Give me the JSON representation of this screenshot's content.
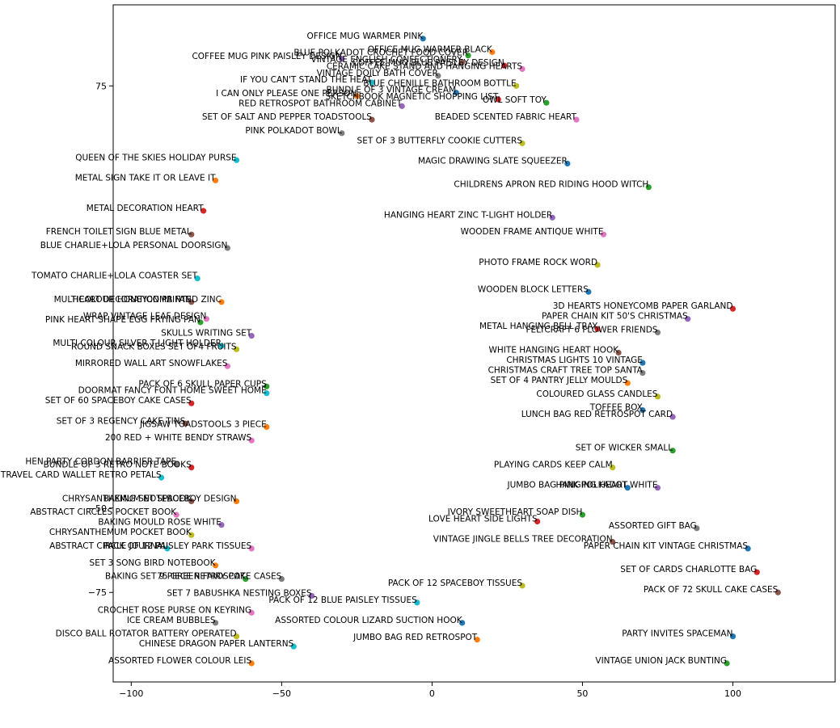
{
  "chart_data": {
    "type": "scatter",
    "title": "",
    "xlabel": "",
    "ylabel": "",
    "xlim": [
      -106,
      134
    ],
    "ylim": [
      -101.5,
      99
    ],
    "grid": false,
    "legend": "none",
    "x_ticks": [
      {
        "value": -100,
        "label": "−100"
      },
      {
        "value": -50,
        "label": "−50"
      },
      {
        "value": 0,
        "label": "0"
      },
      {
        "value": 50,
        "label": "50"
      },
      {
        "value": 100,
        "label": "100"
      }
    ],
    "y_ticks": [
      {
        "value": 75,
        "label": "75"
      },
      {
        "value": -50,
        "label": "−50"
      },
      {
        "value": -75,
        "label": "−75"
      }
    ],
    "palette": [
      "#1f77b4",
      "#ff7f0e",
      "#2ca02c",
      "#d62728",
      "#9467bd",
      "#8c564b",
      "#e377c2",
      "#7f7f7f",
      "#bcbd22",
      "#17becf"
    ],
    "points": [
      {
        "x": -3,
        "y": 89,
        "label": "OFFICE MUG WARMER PINK"
      },
      {
        "x": 20,
        "y": 85,
        "label": "OFFICE MUG WARMER BLACK"
      },
      {
        "x": 12,
        "y": 84,
        "label": "BLUE POLKADOT CROCHET FOOD COVER"
      },
      {
        "x": 24,
        "y": 81,
        "label": "COFFEE MUG BLUE PAISLEY DESIGN"
      },
      {
        "x": -30,
        "y": 83,
        "label": "COFFEE MUG PINK PAISLEY DESIGN"
      },
      {
        "x": 10,
        "y": 82,
        "label": "VINTAGE ENGLISH CONFECTIONERY"
      },
      {
        "x": 30,
        "y": 80,
        "label": "CERAMIC CAKE STAND AND HANGING HEARTS"
      },
      {
        "x": 2,
        "y": 78,
        "label": "VINTAGE DOILY BATH COVER"
      },
      {
        "x": 28,
        "y": 75,
        "label": "BLUE CHENILLE BATHROOM BOTTLE"
      },
      {
        "x": -20,
        "y": 76,
        "label": "IF YOU CAN'T STAND THE HEAT"
      },
      {
        "x": 8,
        "y": 73,
        "label": "BUNDLE OF 3 VINTAGE CREAM"
      },
      {
        "x": -25,
        "y": 72,
        "label": "I CAN ONLY PLEASE ONE PERSON"
      },
      {
        "x": 38,
        "y": 70,
        "label": "OWL SOFT TOY"
      },
      {
        "x": 22,
        "y": 71,
        "label": "SKETCHBOOK MAGNETIC SHOPPING LIST"
      },
      {
        "x": -10,
        "y": 69,
        "label": "RED RETROSPOT BATHROOM CABINET"
      },
      {
        "x": -20,
        "y": 65,
        "label": "SET OF SALT AND PEPPER TOADSTOOLS"
      },
      {
        "x": 48,
        "y": 65,
        "label": "BEADED SCENTED FABRIC HEART"
      },
      {
        "x": -30,
        "y": 61,
        "label": "PINK POLKADOT BOWL"
      },
      {
        "x": 30,
        "y": 58,
        "label": "SET OF 3 BUTTERFLY COOKIE CUTTERS"
      },
      {
        "x": -65,
        "y": 53,
        "label": "QUEEN OF THE SKIES HOLIDAY PURSE"
      },
      {
        "x": 45,
        "y": 52,
        "label": "MAGIC DRAWING SLATE SQUEEZER"
      },
      {
        "x": -72,
        "y": 47,
        "label": "METAL SIGN TAKE IT OR LEAVE IT"
      },
      {
        "x": 72,
        "y": 45,
        "label": "CHILDRENS APRON RED RIDING HOOD WITCH"
      },
      {
        "x": -76,
        "y": 38,
        "label": "METAL DECORATION HEART"
      },
      {
        "x": 40,
        "y": 36,
        "label": "HANGING HEART ZINC T-LIGHT HOLDER"
      },
      {
        "x": -80,
        "y": 31,
        "label": "FRENCH TOILET SIGN BLUE METAL"
      },
      {
        "x": 57,
        "y": 31,
        "label": "WOODEN FRAME ANTIQUE WHITE"
      },
      {
        "x": -68,
        "y": 27,
        "label": "BLUE CHARLIE+LOLA PERSONAL DOORSIGN"
      },
      {
        "x": 55,
        "y": 22,
        "label": "PHOTO FRAME ROCK WORD"
      },
      {
        "x": -78,
        "y": 18,
        "label": "TOMATO CHARLIE+LOLA COASTER SET"
      },
      {
        "x": 52,
        "y": 14,
        "label": "WOODEN BLOCK LETTERS"
      },
      {
        "x": -70,
        "y": 11,
        "label": "HEART DECORATION PAINTED ZINC"
      },
      {
        "x": -77,
        "y": 5,
        "label": "PINK HEART SHAPE EGG FRYING PAN"
      },
      {
        "x": 55,
        "y": 3,
        "label": "METAL HANGING BELL TRAY"
      },
      {
        "x": -60,
        "y": 1,
        "label": "SKULLS WRITING SET"
      },
      {
        "x": 62,
        "y": -4,
        "label": "WHITE HANGING HEART HOOK"
      },
      {
        "x": -68,
        "y": -8,
        "label": "MIRRORED WALL ART SNOWFLAKES"
      },
      {
        "x": 70,
        "y": -10,
        "label": "CHRISTMAS CRAFT TREE TOP SANTA"
      },
      {
        "x": 75,
        "y": -17,
        "label": "COLOURED GLASS CANDLES"
      },
      {
        "x": -55,
        "y": -16,
        "label": "DOORMAT FANCY FONT HOME SWEET HOME"
      },
      {
        "x": 70,
        "y": -21,
        "label": "TOFFEE BOX"
      },
      {
        "x": -55,
        "y": -26,
        "label": "JIGSAW TOADSTOOLS 3 PIECE"
      },
      {
        "x": 80,
        "y": -33,
        "label": "SET OF WICKER SMALL"
      },
      {
        "x": -80,
        "y": -38,
        "label": "BUNDLE OF 3 RETRO NOTE BOOKS"
      },
      {
        "x": 75,
        "y": -44,
        "label": "HANGING HEART WHITE"
      },
      {
        "x": -80,
        "y": -48,
        "label": "CHRYSANTHEMUM NOTEBOOK"
      },
      {
        "x": -85,
        "y": -52,
        "label": "ABSTRACT CIRCLES POCKET BOOK"
      },
      {
        "x": 88,
        "y": -56,
        "label": "ASSORTED GIFT BAG"
      },
      {
        "x": -80,
        "y": -58,
        "label": "CHRYSANTHEMUM POCKET BOOK"
      },
      {
        "x": -88,
        "y": -62,
        "label": "ABSTRACT CIRCLE JOURNAL"
      },
      {
        "x": 105,
        "y": -62,
        "label": "PAPER CHAIN KIT VINTAGE CHRISTMAS"
      },
      {
        "x": -72,
        "y": -67,
        "label": "SET 3 SONG BIRD NOTEBOOK"
      },
      {
        "x": -62,
        "y": -71,
        "label": "BAKING SET 9 PIECE RETROSPOT"
      },
      {
        "x": 108,
        "y": -69,
        "label": "SET OF CARDS CHARLOTTE BAG"
      },
      {
        "x": -40,
        "y": -76,
        "label": "SET 7 BABUSHKA NESTING BOXES"
      },
      {
        "x": 115,
        "y": -75,
        "label": "PACK OF 72 SKULL CAKE CASES"
      },
      {
        "x": -60,
        "y": -81,
        "label": "CROCHET ROSE PURSE ON KEYRING"
      },
      {
        "x": -72,
        "y": -84,
        "label": "ICE CREAM BUBBLES"
      },
      {
        "x": -65,
        "y": -88,
        "label": "DISCO BALL ROTATOR BATTERY OPERATED"
      },
      {
        "x": -46,
        "y": -91,
        "label": "CHINESE DRAGON PAPER LANTERNS"
      },
      {
        "x": 100,
        "y": -88,
        "label": "PARTY INVITES SPACEMAN"
      },
      {
        "x": -60,
        "y": -96,
        "label": "ASSORTED FLOWER COLOUR LEIS"
      },
      {
        "x": 98,
        "y": -96,
        "label": "VINTAGE UNION JACK BUNTING"
      }
    ],
    "overlay_points": [
      {
        "x": 100,
        "y": 9,
        "label": "3D HEARTS HONEYCOMB PAPER GARLAND"
      },
      {
        "x": 85,
        "y": 6,
        "label": "PAPER CHAIN KIT 50'S CHRISTMAS"
      },
      {
        "x": -80,
        "y": 11,
        "label": "MULTICOLOUR HONEYCOMB FAN"
      },
      {
        "x": -75,
        "y": 6,
        "label": "WRAP VINTAGE LEAF DESIGN"
      },
      {
        "x": 75,
        "y": 2,
        "label": "FELTCRAFT 6 FLOWER FRIENDS"
      },
      {
        "x": -65,
        "y": -3,
        "label": "ROUND SNACK BOXES SET OF4 FRUITS"
      },
      {
        "x": -70,
        "y": -2,
        "label": "MULTI COLOUR SILVER T-LIGHT HOLDER"
      },
      {
        "x": 70,
        "y": -7,
        "label": "CHRISTMAS LIGHTS 10 VINTAGE"
      },
      {
        "x": 65,
        "y": -13,
        "label": "SET OF 4 PANTRY JELLY MOULDS"
      },
      {
        "x": -55,
        "y": -14,
        "label": "PACK OF 6 SKULL PAPER CUPS"
      },
      {
        "x": -80,
        "y": -19,
        "label": "SET OF 60 SPACEBOY CAKE CASES"
      },
      {
        "x": 80,
        "y": -23,
        "label": "LUNCH BAG RED RETROSPOT CARD"
      },
      {
        "x": -82,
        "y": -25,
        "label": "SET OF 3 REGENCY CAKE TINS"
      },
      {
        "x": -60,
        "y": -30,
        "label": "200 RED + WHITE BENDY STRAWS"
      },
      {
        "x": -85,
        "y": -37,
        "label": "HEN PARTY CORDON BARRIER TAPE"
      },
      {
        "x": 60,
        "y": -38,
        "label": "PLAYING CARDS KEEP CALM"
      },
      {
        "x": -90,
        "y": -41,
        "label": "TRAVEL CARD WALLET RETRO PETALS"
      },
      {
        "x": 65,
        "y": -44,
        "label": "JUMBO BAG PINK POLKADOT"
      },
      {
        "x": -65,
        "y": -48,
        "label": "BAKING SET SPACEBOY DESIGN"
      },
      {
        "x": 50,
        "y": -52,
        "label": "IVORY SWEETHEART SOAP DISH"
      },
      {
        "x": 35,
        "y": -54,
        "label": "LOVE HEART SIDE LIGHTS"
      },
      {
        "x": -70,
        "y": -55,
        "label": "BAKING MOULD ROSE WHITE"
      },
      {
        "x": 60,
        "y": -60,
        "label": "VINTAGE JINGLE BELLS TREE DECORATION"
      },
      {
        "x": -60,
        "y": -62,
        "label": "PACK OF 12 PAISLEY PARK TISSUES"
      },
      {
        "x": -50,
        "y": -71,
        "label": "75 GREEN FAIRY CAKE CASES"
      },
      {
        "x": 30,
        "y": -73,
        "label": "PACK OF 12 SPACEBOY TISSUES"
      },
      {
        "x": -5,
        "y": -78,
        "label": "PACK OF 12 BLUE PAISLEY TISSUES"
      },
      {
        "x": 10,
        "y": -84,
        "label": "ASSORTED COLOUR LIZARD SUCTION HOOK"
      },
      {
        "x": 15,
        "y": -89,
        "label": "JUMBO BAG RED RETROSPOT"
      }
    ]
  }
}
